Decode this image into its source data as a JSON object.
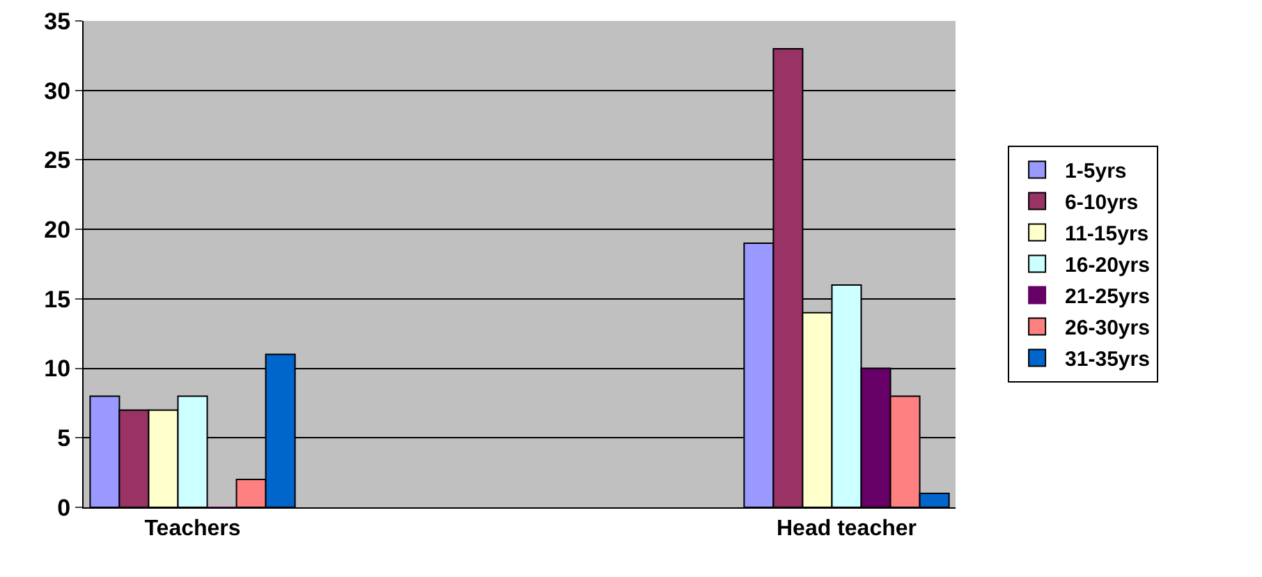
{
  "chart_data": {
    "type": "bar",
    "categories": [
      "Teachers",
      null,
      null,
      "Head teacher"
    ],
    "series": [
      {
        "name": "1-5yrs",
        "color": "#9999ff",
        "values": [
          8,
          null,
          null,
          19
        ]
      },
      {
        "name": "6-10yrs",
        "color": "#993366",
        "values": [
          7,
          null,
          null,
          33
        ]
      },
      {
        "name": "11-15yrs",
        "color": "#ffffcc",
        "values": [
          7,
          null,
          null,
          14
        ]
      },
      {
        "name": "16-20yrs",
        "color": "#ccffff",
        "values": [
          8,
          null,
          null,
          16
        ]
      },
      {
        "name": "21-25yrs",
        "color": "#660066",
        "values": [
          0,
          null,
          null,
          10
        ]
      },
      {
        "name": "26-30yrs",
        "color": "#ff8080",
        "values": [
          2,
          null,
          null,
          8
        ]
      },
      {
        "name": "31-35yrs",
        "color": "#0066cc",
        "values": [
          11,
          null,
          null,
          1
        ]
      }
    ],
    "ylim": [
      0,
      35
    ],
    "yticks": [
      0,
      5,
      10,
      15,
      20,
      25,
      30,
      35
    ],
    "grid": "y",
    "legend": "right"
  }
}
